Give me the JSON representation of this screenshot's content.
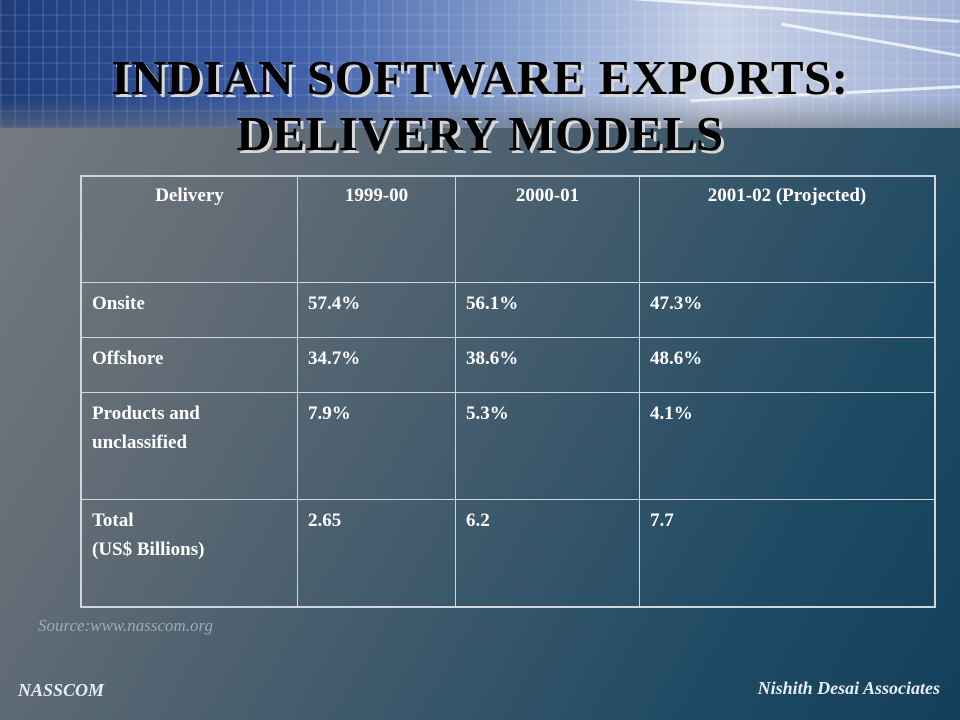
{
  "slide": {
    "title_line1": "INDIAN SOFTWARE EXPORTS:",
    "title_line2": "DELIVERY MODELS",
    "source": "Source:www.nasscom.org",
    "footer_left": "NASSCOM",
    "footer_right": "Nishith Desai Associates"
  },
  "table": {
    "headers": [
      "Delivery",
      "1999-00",
      "2000-01",
      "2001-02 (Projected)"
    ],
    "rows": [
      {
        "label_line1": "Onsite",
        "label_line2": "",
        "v1": "57.4%",
        "v2": "56.1%",
        "v3": "47.3%"
      },
      {
        "label_line1": "Offshore",
        "label_line2": "",
        "v1": "34.7%",
        "v2": "38.6%",
        "v3": "48.6%"
      },
      {
        "label_line1": "Products and",
        "label_line2": "unclassified",
        "v1": "7.9%",
        "v2": "5.3%",
        "v3": "4.1%"
      },
      {
        "label_line1": "Total",
        "label_line2": "(US$ Billions)",
        "v1": "2.65",
        "v2": "6.2",
        "v3": "7.7"
      }
    ]
  }
}
